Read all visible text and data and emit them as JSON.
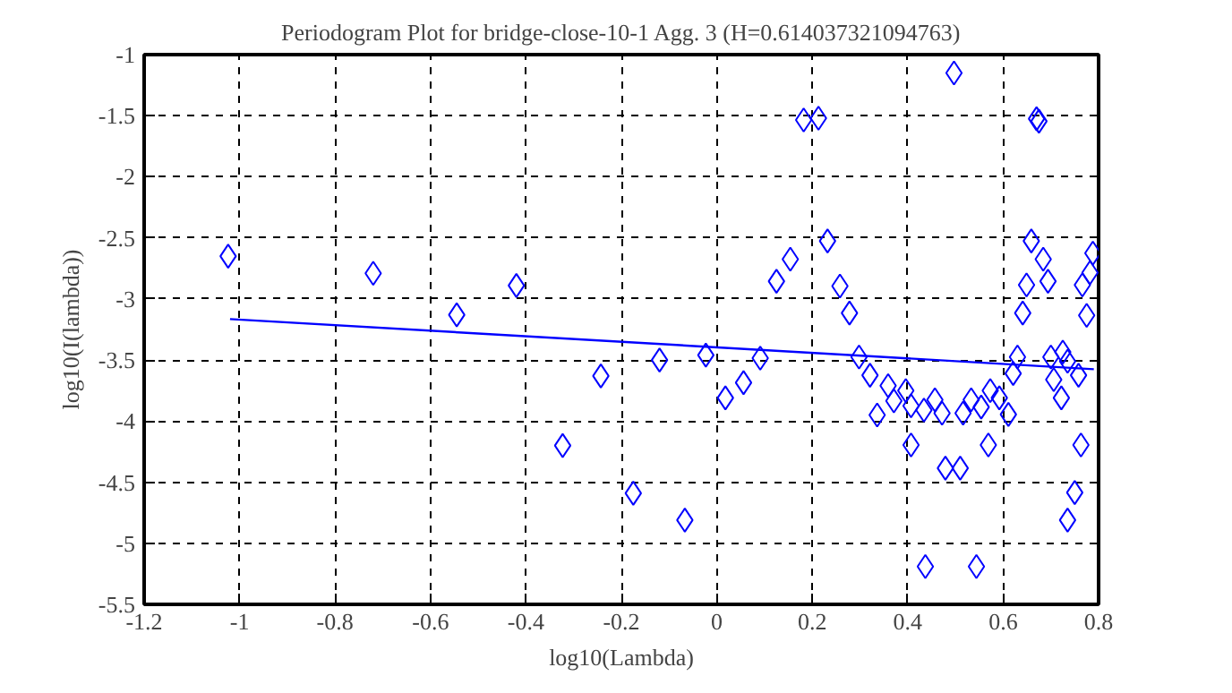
{
  "chart_data": {
    "type": "scatter",
    "title": "Periodogram Plot for bridge-close-10-1 Agg. 3 (H=0.614037321094763)",
    "xlabel": "log10(Lambda)",
    "ylabel": "log10(I(lambda))",
    "xlim": [
      -1.2,
      0.8
    ],
    "xticks": [
      {
        "value": -1.2,
        "label": "-1.2"
      },
      {
        "value": -1,
        "label": "-1"
      },
      {
        "value": -0.8,
        "label": "-0.8"
      },
      {
        "value": -0.6,
        "label": "-0.6"
      },
      {
        "value": -0.4,
        "label": "-0.4"
      },
      {
        "value": -0.2,
        "label": "-0.2"
      },
      {
        "value": 0,
        "label": "0"
      },
      {
        "value": 0.2,
        "label": "0.2"
      },
      {
        "value": 0.4,
        "label": "0.4"
      },
      {
        "value": 0.6,
        "label": "0.6"
      },
      {
        "value": 0.8,
        "label": "0.8"
      }
    ],
    "ylim": [
      -5.5,
      -1
    ],
    "yticks": [
      {
        "value": -5.5,
        "label": "-5.5"
      },
      {
        "value": -5,
        "label": "-5"
      },
      {
        "value": -4.5,
        "label": "-4.5"
      },
      {
        "value": -4,
        "label": "-4"
      },
      {
        "value": -3.5,
        "label": "-3.5"
      },
      {
        "value": -3,
        "label": "-3"
      },
      {
        "value": -2.5,
        "label": "-2.5"
      },
      {
        "value": -2,
        "label": "-2"
      },
      {
        "value": -1.5,
        "label": "-1.5"
      },
      {
        "value": -1,
        "label": "-1"
      }
    ],
    "grid": true,
    "series": [
      {
        "marker": "diamond",
        "color": "#0000ff",
        "x": [
          -1.024,
          -0.72,
          -0.545,
          -0.42,
          -0.243,
          -0.323,
          -0.175,
          -0.12,
          -0.067,
          0.497,
          0.182,
          0.213,
          0.67,
          0.675,
          0.232,
          0.154,
          0.125,
          0.258,
          0.278,
          0.659,
          0.684,
          0.649,
          0.694,
          0.641,
          0.788,
          0.782,
          0.766,
          0.775,
          -0.023,
          0.018,
          0.056,
          0.091,
          0.298,
          0.321,
          0.359,
          0.336,
          0.371,
          0.396,
          0.407,
          0.407,
          0.434,
          0.457,
          0.472,
          0.479,
          0.51,
          0.437,
          0.544,
          0.516,
          0.533,
          0.554,
          0.573,
          0.592,
          0.611,
          0.569,
          0.621,
          0.63,
          0.7,
          0.725,
          0.735,
          0.706,
          0.722,
          0.758,
          0.763,
          0.75,
          0.735
        ],
        "values": [
          -2.65,
          -2.79,
          -3.13,
          -2.89,
          -3.63,
          -4.2,
          -4.59,
          -3.5,
          -4.81,
          -1.15,
          -1.535,
          -1.52,
          -1.525,
          -1.545,
          -2.525,
          -2.675,
          -2.855,
          -2.895,
          -3.115,
          -2.525,
          -2.675,
          -2.885,
          -2.855,
          -3.115,
          -2.625,
          -2.785,
          -2.885,
          -3.135,
          -3.46,
          -3.81,
          -3.685,
          -3.485,
          -3.475,
          -3.625,
          -3.71,
          -3.95,
          -3.835,
          -3.75,
          -3.875,
          -4.195,
          -3.91,
          -3.825,
          -3.935,
          -4.385,
          -4.385,
          -5.19,
          -5.19,
          -3.935,
          -3.825,
          -3.885,
          -3.75,
          -3.81,
          -3.945,
          -4.195,
          -3.61,
          -3.475,
          -3.475,
          -3.435,
          -3.51,
          -3.66,
          -3.81,
          -3.625,
          -4.195,
          -4.585,
          -4.81
        ]
      },
      {
        "type": "line",
        "marker": "none",
        "line_style": "solid",
        "color": "#0000ff",
        "x": [
          -1.02,
          0.79
        ],
        "values": [
          -3.165,
          -3.575
        ]
      }
    ]
  }
}
